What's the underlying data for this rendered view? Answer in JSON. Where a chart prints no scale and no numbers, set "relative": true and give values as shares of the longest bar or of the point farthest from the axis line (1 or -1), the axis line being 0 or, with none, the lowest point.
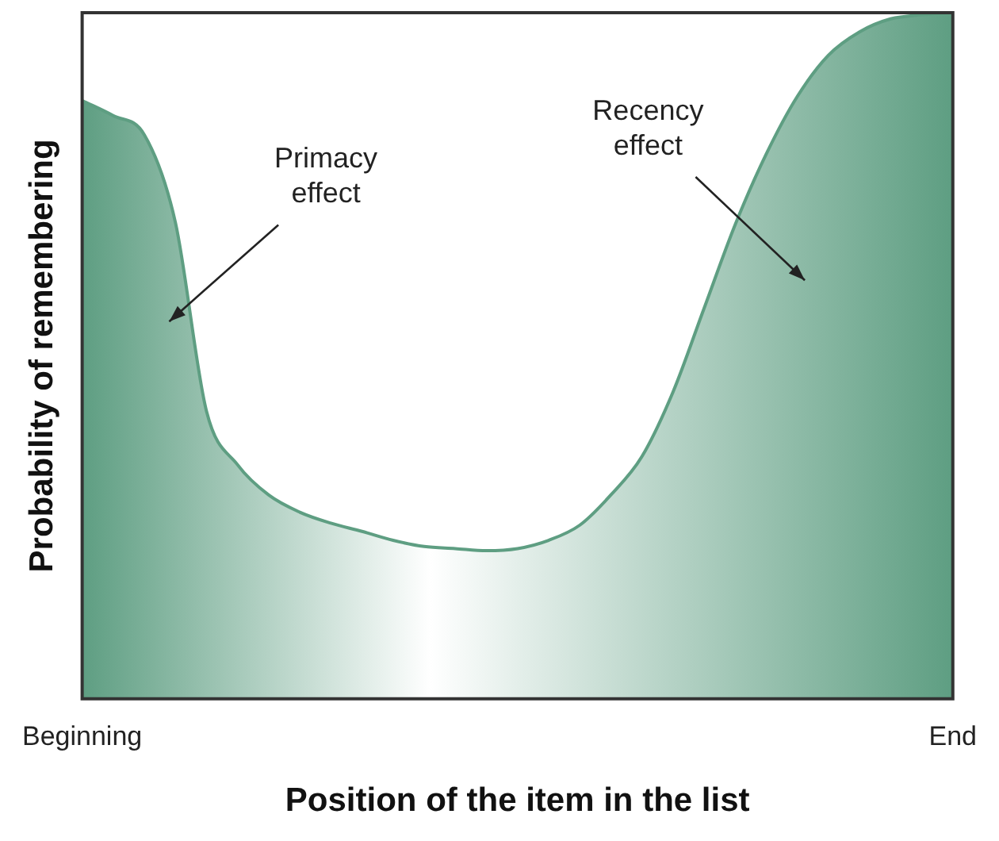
{
  "chart_data": {
    "type": "area",
    "relative": true,
    "xlabel": "Position of the item in the list",
    "ylabel": "Probability of remembering",
    "categories": [
      "Beginning",
      null,
      null,
      null,
      null,
      null,
      null,
      null,
      null,
      null,
      null,
      null,
      null,
      null,
      null,
      null,
      null,
      null,
      null,
      null,
      null,
      null,
      null,
      null,
      null,
      null,
      null,
      null,
      "End"
    ],
    "series": [
      {
        "color": "#5e9e82",
        "values": [
          0.872,
          0.85,
          0.822,
          0.694,
          0.419,
          0.341,
          0.297,
          0.272,
          0.256,
          0.244,
          0.231,
          0.222,
          0.219,
          0.216,
          0.219,
          0.231,
          0.253,
          0.297,
          0.353,
          0.447,
          0.569,
          0.691,
          0.794,
          0.878,
          0.938,
          0.972,
          0.991,
          0.997,
          1
        ]
      }
    ],
    "annotations": [
      "Primacy effect",
      "Recency effect"
    ],
    "grid": false,
    "legend": false,
    "marker": "none"
  }
}
